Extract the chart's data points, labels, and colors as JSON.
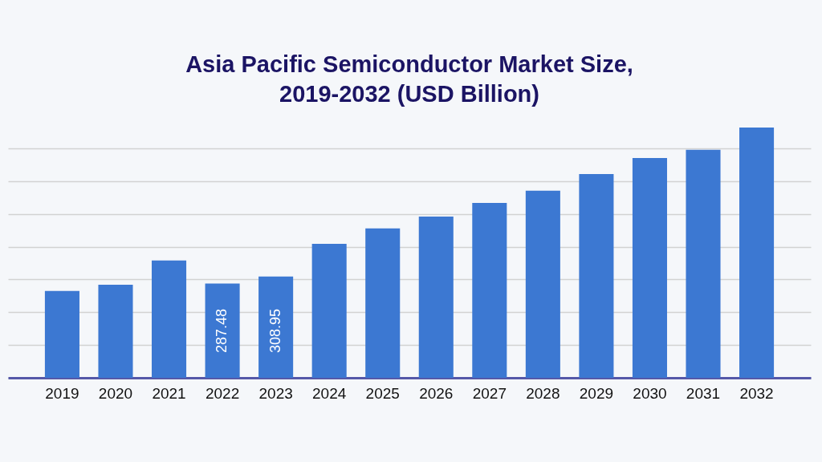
{
  "chart_data": {
    "type": "bar",
    "title": "Asia Pacific Semiconductor Market Size, 2019-2032 (USD Billion)",
    "categories": [
      "2019",
      "2020",
      "2021",
      "2022",
      "2023",
      "2024",
      "2025",
      "2026",
      "2027",
      "2028",
      "2029",
      "2030",
      "2031",
      "2032"
    ],
    "values": [
      265,
      284,
      358,
      287.48,
      308.95,
      409,
      456,
      492,
      534,
      571,
      622,
      671,
      696,
      764
    ],
    "value_labels": [
      null,
      null,
      null,
      "287.48",
      "308.95",
      null,
      null,
      null,
      null,
      null,
      null,
      null,
      null,
      null
    ],
    "color": "#3c78d2",
    "ylim": [
      0,
      764
    ],
    "tick_labels": "x",
    "grid": "y"
  }
}
